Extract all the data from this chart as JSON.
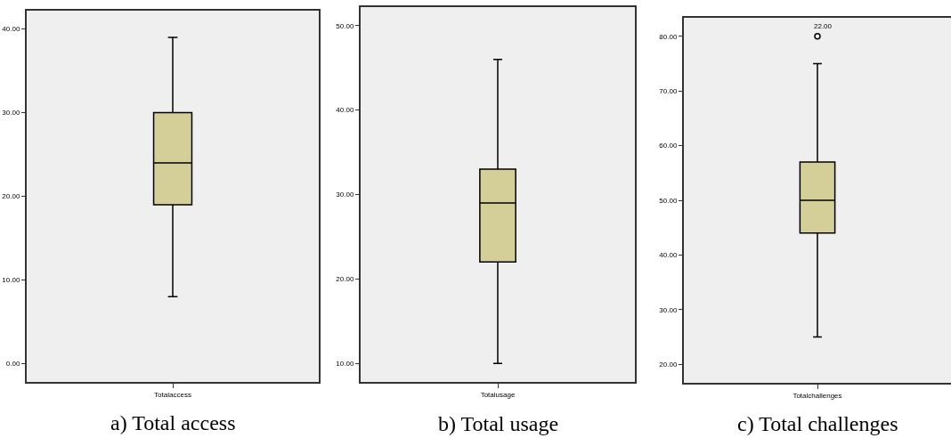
{
  "chart_data": [
    {
      "type": "box",
      "categories": [
        "Totalaccess"
      ],
      "series": [
        {
          "color": "#d4cf98",
          "boxes": [
            {
              "low": 8,
              "q1": 19,
              "median": 24,
              "q3": 30,
              "high": 39
            }
          ]
        }
      ],
      "ylim": [
        -2.2,
        42.2
      ],
      "yticks": [
        {
          "value": 0,
          "label": "0.00"
        },
        {
          "value": 10,
          "label": "10.00"
        },
        {
          "value": 20,
          "label": "20.00"
        },
        {
          "value": 30,
          "label": "30.00"
        },
        {
          "value": 40,
          "label": "40.00"
        }
      ],
      "annotations": [
        "a) Total access"
      ]
    },
    {
      "type": "box",
      "categories": [
        "Totalusage"
      ],
      "series": [
        {
          "color": "#d4cf98",
          "boxes": [
            {
              "low": 10,
              "q1": 22,
              "median": 29,
              "q3": 33,
              "high": 46
            }
          ]
        }
      ],
      "ylim": [
        7.8,
        52.2
      ],
      "yticks": [
        {
          "value": 10,
          "label": "10.00"
        },
        {
          "value": 20,
          "label": "20.00"
        },
        {
          "value": 30,
          "label": "30.00"
        },
        {
          "value": 40,
          "label": "40.00"
        },
        {
          "value": 50,
          "label": "50.00"
        }
      ],
      "annotations": [
        "b) Total usage"
      ]
    },
    {
      "type": "box",
      "categories": [
        "Totalchallenges"
      ],
      "series": [
        {
          "color": "#d4cf98",
          "boxes": [
            {
              "low": 25,
              "q1": 44,
              "median": 50,
              "q3": 57,
              "high": 75,
              "outliers": [
                80
              ]
            }
          ]
        }
      ],
      "ylim": [
        16.6,
        83.4
      ],
      "yticks": [
        {
          "value": 20,
          "label": "20.00"
        },
        {
          "value": 30,
          "label": "30.00"
        },
        {
          "value": 40,
          "label": "40.00"
        },
        {
          "value": 50,
          "label": "50.00"
        },
        {
          "value": 60,
          "label": "60.00"
        },
        {
          "value": 70,
          "label": "70.00"
        },
        {
          "value": 80,
          "label": "80.00"
        }
      ],
      "annotations": [
        "c) Total challenges",
        "22.00"
      ]
    }
  ]
}
